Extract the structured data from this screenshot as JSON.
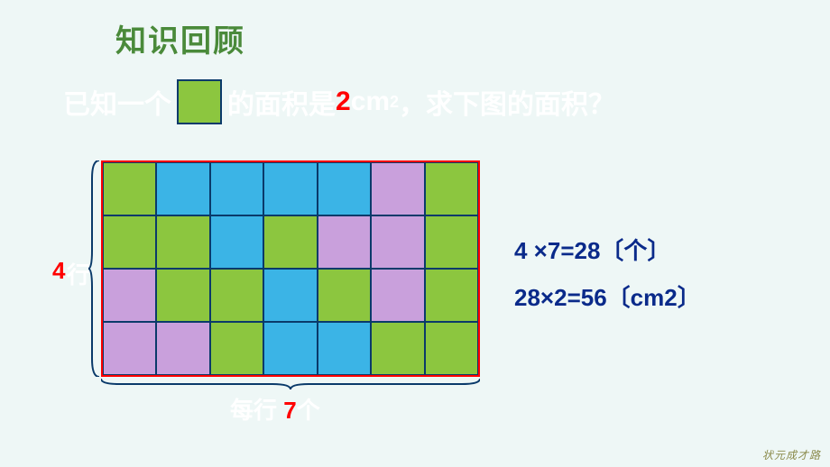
{
  "title": "知识回顾",
  "question": {
    "part1": "已知一个",
    "part2": "的面积是",
    "highlight_num": "2",
    "unit_base": "cm",
    "unit_sup": "2",
    "part3": "，求下图的面积？"
  },
  "inline_square": {
    "fill": "#8cc63f",
    "border": "#0a3a6a"
  },
  "grid": {
    "rows": 4,
    "cols": 7,
    "border_color": "#ff0000",
    "cell_border": "#0a3a6a",
    "colors": {
      "g": "#8cc63f",
      "b": "#3bb4e6",
      "p": "#c9a0dc"
    },
    "cells": [
      [
        "g",
        "b",
        "b",
        "b",
        "b",
        "p",
        "g"
      ],
      [
        "g",
        "g",
        "b",
        "g",
        "p",
        "p",
        "g"
      ],
      [
        "p",
        "g",
        "g",
        "b",
        "g",
        "p",
        "g"
      ],
      [
        "p",
        "p",
        "g",
        "b",
        "b",
        "g",
        "g"
      ]
    ]
  },
  "row_label": {
    "num": "4",
    "txt": "行"
  },
  "col_label": {
    "pre": "每行 ",
    "num": "7",
    "post": "个"
  },
  "brace_color": "#0a3a6a",
  "equations": {
    "line1": "4 ×7=28〔个〕",
    "line2": "28×2=56〔cm2〕"
  },
  "watermark": "状元成才路",
  "background": "#eef7f6"
}
